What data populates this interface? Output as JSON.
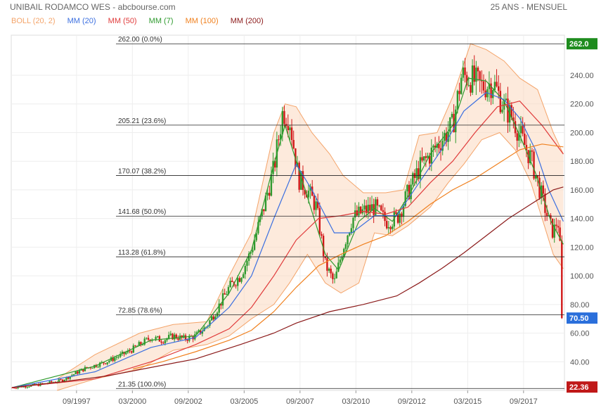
{
  "header": {
    "title": "UNIBAIL RODAMCO WES - abcbourse.com",
    "period": "25 ANS - MENSUEL"
  },
  "legend": [
    {
      "label": "BOLL (20, 2)",
      "color": "#f4a46a"
    },
    {
      "label": "MM (20)",
      "color": "#3b6fe0"
    },
    {
      "label": "MM (50)",
      "color": "#e03a3a"
    },
    {
      "label": "MM (7)",
      "color": "#2e9a2e"
    },
    {
      "label": "MM (100)",
      "color": "#f0801e"
    },
    {
      "label": "MM (200)",
      "color": "#8b1a1a"
    }
  ],
  "chart_data": {
    "type": "candlestick",
    "title": "UNIBAIL RODAMCO WES - abcbourse.com",
    "ylim": [
      20,
      268
    ],
    "y_ticks": [
      40,
      60,
      80,
      100,
      120,
      140,
      160,
      180,
      200,
      220,
      240
    ],
    "x_ticks": [
      "09/1997",
      "03/2000",
      "09/2002",
      "03/2005",
      "09/2007",
      "03/2010",
      "09/2012",
      "03/2015",
      "09/2017"
    ],
    "x_tick_years": [
      1997.67,
      2000.17,
      2002.67,
      2005.17,
      2007.67,
      2010.17,
      2012.67,
      2015.17,
      2017.67
    ],
    "x_range": [
      1994.75,
      2019.5
    ],
    "fib_levels": [
      {
        "value": 262.0,
        "label": "262.00  (0.0%)"
      },
      {
        "value": 205.21,
        "label": "205.21  (23.6%)"
      },
      {
        "value": 170.07,
        "label": "170.07  (38.2%)"
      },
      {
        "value": 141.68,
        "label": "141.68  (50.0%)"
      },
      {
        "value": 113.28,
        "label": "113.28  (61.8%)"
      },
      {
        "value": 72.85,
        "label": "72.85  (78.6%)"
      },
      {
        "value": 21.35,
        "label": "21.35  (100.0%)"
      }
    ],
    "price_badges": [
      {
        "value": 262.0,
        "label": "262.0",
        "color": "#1e8c1e"
      },
      {
        "value": 70.5,
        "label": "70.50",
        "color": "#2a6fdb"
      },
      {
        "value": 22.36,
        "label": "22.36",
        "color": "#c01818"
      }
    ],
    "close_path": [
      [
        1994.8,
        22
      ],
      [
        1996.0,
        24
      ],
      [
        1997.0,
        27
      ],
      [
        1998.0,
        35
      ],
      [
        1999.0,
        40
      ],
      [
        2000.0,
        47
      ],
      [
        2000.5,
        52
      ],
      [
        2001.0,
        57
      ],
      [
        2001.5,
        55
      ],
      [
        2002.0,
        58
      ],
      [
        2002.5,
        56
      ],
      [
        2003.0,
        58
      ],
      [
        2003.5,
        65
      ],
      [
        2004.0,
        78
      ],
      [
        2004.5,
        92
      ],
      [
        2005.0,
        100
      ],
      [
        2005.5,
        118
      ],
      [
        2006.0,
        145
      ],
      [
        2006.5,
        175
      ],
      [
        2006.9,
        215
      ],
      [
        2007.2,
        210
      ],
      [
        2007.6,
        168
      ],
      [
        2008.0,
        160
      ],
      [
        2008.4,
        148
      ],
      [
        2008.8,
        108
      ],
      [
        2009.2,
        95
      ],
      [
        2009.6,
        120
      ],
      [
        2010.0,
        140
      ],
      [
        2010.5,
        145
      ],
      [
        2011.0,
        148
      ],
      [
        2011.5,
        138
      ],
      [
        2012.0,
        140
      ],
      [
        2012.5,
        158
      ],
      [
        2013.0,
        175
      ],
      [
        2013.5,
        185
      ],
      [
        2014.0,
        195
      ],
      [
        2014.5,
        205
      ],
      [
        2014.9,
        240
      ],
      [
        2015.3,
        238
      ],
      [
        2015.8,
        232
      ],
      [
        2016.3,
        235
      ],
      [
        2016.8,
        218
      ],
      [
        2017.2,
        210
      ],
      [
        2017.6,
        195
      ],
      [
        2018.0,
        182
      ],
      [
        2018.4,
        160
      ],
      [
        2018.8,
        138
      ],
      [
        2019.0,
        130
      ],
      [
        2019.2,
        140
      ],
      [
        2019.35,
        110
      ],
      [
        2019.45,
        70.5
      ]
    ],
    "series": [
      {
        "name": "MM (7)",
        "color": "#2e9a2e",
        "points": [
          [
            1994.8,
            22
          ],
          [
            1998.5,
            37
          ],
          [
            2001.0,
            55
          ],
          [
            2003.0,
            58
          ],
          [
            2004.5,
            88
          ],
          [
            2005.5,
            118
          ],
          [
            2006.5,
            178
          ],
          [
            2007.0,
            205
          ],
          [
            2007.8,
            165
          ],
          [
            2008.8,
            115
          ],
          [
            2009.4,
            104
          ],
          [
            2010.3,
            138
          ],
          [
            2011.0,
            147
          ],
          [
            2011.8,
            138
          ],
          [
            2012.6,
            158
          ],
          [
            2013.5,
            185
          ],
          [
            2014.5,
            205
          ],
          [
            2015.2,
            238
          ],
          [
            2016.0,
            236
          ],
          [
            2016.8,
            222
          ],
          [
            2017.5,
            198
          ],
          [
            2018.2,
            172
          ],
          [
            2018.9,
            138
          ],
          [
            2019.45,
            122
          ]
        ]
      },
      {
        "name": "MM (20)",
        "color": "#3b6fe0",
        "points": [
          [
            1994.8,
            22
          ],
          [
            1998.5,
            33
          ],
          [
            2001.0,
            50
          ],
          [
            2003.0,
            57
          ],
          [
            2004.5,
            78
          ],
          [
            2005.5,
            100
          ],
          [
            2006.5,
            140
          ],
          [
            2007.5,
            178
          ],
          [
            2008.2,
            160
          ],
          [
            2009.2,
            130
          ],
          [
            2010.0,
            130
          ],
          [
            2011.0,
            142
          ],
          [
            2012.0,
            142
          ],
          [
            2013.0,
            165
          ],
          [
            2014.0,
            188
          ],
          [
            2015.0,
            215
          ],
          [
            2016.0,
            228
          ],
          [
            2016.8,
            223
          ],
          [
            2017.5,
            210
          ],
          [
            2018.2,
            188
          ],
          [
            2018.8,
            160
          ],
          [
            2019.45,
            138
          ]
        ]
      },
      {
        "name": "MM (50)",
        "color": "#e03a3a",
        "points": [
          [
            1994.8,
            22
          ],
          [
            1998.5,
            28
          ],
          [
            2001.0,
            40
          ],
          [
            2003.0,
            52
          ],
          [
            2004.5,
            63
          ],
          [
            2005.5,
            78
          ],
          [
            2006.5,
            100
          ],
          [
            2007.5,
            125
          ],
          [
            2008.5,
            140
          ],
          [
            2009.5,
            142
          ],
          [
            2010.5,
            145
          ],
          [
            2011.5,
            143
          ],
          [
            2012.5,
            148
          ],
          [
            2013.5,
            165
          ],
          [
            2014.5,
            180
          ],
          [
            2015.5,
            200
          ],
          [
            2016.5,
            218
          ],
          [
            2017.5,
            222
          ],
          [
            2018.5,
            205
          ],
          [
            2019.45,
            185
          ]
        ]
      },
      {
        "name": "MM (100)",
        "color": "#f0801e",
        "points": [
          [
            2000.2,
            35
          ],
          [
            2001.5,
            40
          ],
          [
            2003.0,
            47
          ],
          [
            2004.5,
            55
          ],
          [
            2005.5,
            62
          ],
          [
            2006.5,
            75
          ],
          [
            2007.5,
            92
          ],
          [
            2008.5,
            107
          ],
          [
            2009.5,
            115
          ],
          [
            2010.5,
            122
          ],
          [
            2011.5,
            128
          ],
          [
            2012.5,
            138
          ],
          [
            2013.5,
            150
          ],
          [
            2014.5,
            160
          ],
          [
            2015.5,
            168
          ],
          [
            2016.5,
            178
          ],
          [
            2017.5,
            188
          ],
          [
            2018.5,
            192
          ],
          [
            2019.45,
            190
          ]
        ]
      },
      {
        "name": "MM (200)",
        "color": "#8b1a1a",
        "points": [
          [
            1994.8,
            22
          ],
          [
            1997.0,
            26
          ],
          [
            1999.0,
            30
          ],
          [
            2001.0,
            36
          ],
          [
            2003.0,
            42
          ],
          [
            2005.0,
            52
          ],
          [
            2006.5,
            60
          ],
          [
            2007.5,
            67
          ],
          [
            2009.0,
            75
          ],
          [
            2010.5,
            80
          ],
          [
            2012.0,
            86
          ],
          [
            2013.0,
            95
          ],
          [
            2014.0,
            105
          ],
          [
            2015.0,
            116
          ],
          [
            2016.0,
            128
          ],
          [
            2017.0,
            140
          ],
          [
            2018.0,
            150
          ],
          [
            2019.0,
            160
          ],
          [
            2019.45,
            162
          ]
        ]
      }
    ],
    "bollinger_upper": [
      [
        1996.8,
        28
      ],
      [
        1998.5,
        45
      ],
      [
        2000.5,
        60
      ],
      [
        2002.0,
        66
      ],
      [
        2003.5,
        68
      ],
      [
        2004.5,
        100
      ],
      [
        2005.5,
        130
      ],
      [
        2006.5,
        200
      ],
      [
        2007.0,
        220
      ],
      [
        2007.5,
        218
      ],
      [
        2008.2,
        200
      ],
      [
        2009.0,
        185
      ],
      [
        2009.6,
        170
      ],
      [
        2010.5,
        158
      ],
      [
        2011.5,
        158
      ],
      [
        2012.3,
        160
      ],
      [
        2013.0,
        198
      ],
      [
        2013.8,
        200
      ],
      [
        2014.5,
        225
      ],
      [
        2015.3,
        262
      ],
      [
        2016.0,
        258
      ],
      [
        2016.8,
        250
      ],
      [
        2017.5,
        238
      ],
      [
        2018.3,
        230
      ],
      [
        2019.0,
        200
      ],
      [
        2019.45,
        185
      ]
    ],
    "bollinger_lower": [
      [
        1996.8,
        20
      ],
      [
        1998.5,
        28
      ],
      [
        2000.5,
        35
      ],
      [
        2002.0,
        48
      ],
      [
        2003.5,
        52
      ],
      [
        2004.5,
        58
      ],
      [
        2005.5,
        70
      ],
      [
        2006.5,
        80
      ],
      [
        2007.2,
        95
      ],
      [
        2008.0,
        115
      ],
      [
        2008.8,
        95
      ],
      [
        2009.5,
        88
      ],
      [
        2010.3,
        95
      ],
      [
        2011.0,
        130
      ],
      [
        2011.8,
        128
      ],
      [
        2012.5,
        135
      ],
      [
        2013.5,
        148
      ],
      [
        2014.3,
        165
      ],
      [
        2015.0,
        178
      ],
      [
        2015.8,
        195
      ],
      [
        2016.6,
        200
      ],
      [
        2017.3,
        188
      ],
      [
        2018.0,
        165
      ],
      [
        2018.6,
        135
      ],
      [
        2019.0,
        115
      ],
      [
        2019.45,
        105
      ]
    ]
  }
}
